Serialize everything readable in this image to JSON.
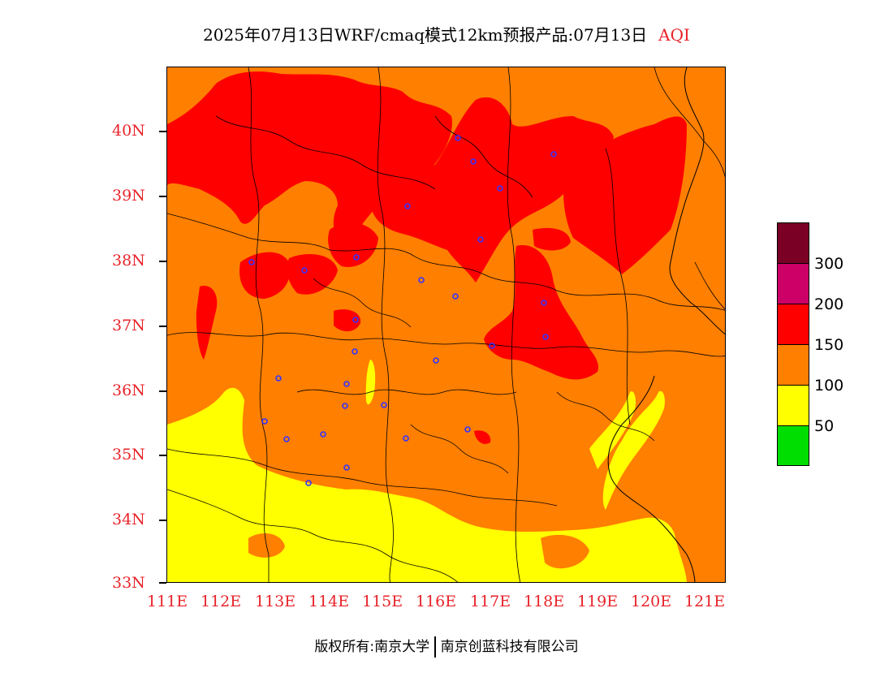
{
  "title": {
    "main": "2025年07月13日WRF/cmaq模式12km预报产品:07月13日",
    "product": "AQI"
  },
  "map": {
    "lat_labels": [
      "40N",
      "39N",
      "38N",
      "37N",
      "36N",
      "35N",
      "34N",
      "33N"
    ],
    "lon_labels": [
      "111E",
      "112E",
      "113E",
      "114E",
      "115E",
      "116E",
      "117E",
      "118E",
      "119E",
      "120E",
      "121E"
    ],
    "lat_range": [
      33,
      41
    ],
    "lon_range": [
      111,
      121.4
    ],
    "colors": {
      "moderate": "#ff7f00",
      "good": "#ffff00",
      "unhealthy": "#ff0000",
      "boundary": "#000000",
      "station": "#3333ff"
    }
  },
  "legend": {
    "bins": [
      {
        "color": "#7a0026"
      },
      {
        "color": "#cc0066"
      },
      {
        "color": "#ff0000"
      },
      {
        "color": "#ff7f00"
      },
      {
        "color": "#ffff00"
      },
      {
        "color": "#00dd00"
      }
    ],
    "labels": [
      "300",
      "200",
      "150",
      "100",
      "50"
    ]
  },
  "credit": {
    "left": "版权所有:南京大学",
    "right": "南京创蓝科技有限公司"
  }
}
